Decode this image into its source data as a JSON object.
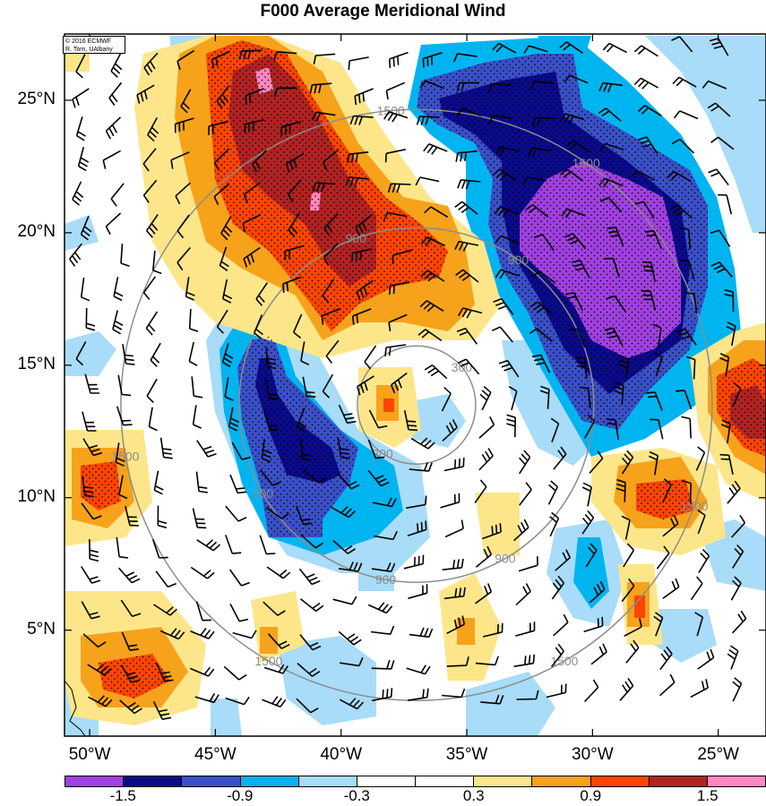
{
  "title": "F000 Average Meridional Wind",
  "credit": {
    "line1": "© 2016 ECMWF",
    "line2": "R. Torn, UAlbany"
  },
  "lat_ticks": [
    {
      "label": "25°N",
      "lat": 25
    },
    {
      "label": "20°N",
      "lat": 20
    },
    {
      "label": "15°N",
      "lat": 15
    },
    {
      "label": "10°N",
      "lat": 10
    },
    {
      "label": "5°N",
      "lat": 5
    }
  ],
  "lon_ticks": [
    {
      "label": "50°W",
      "lon": -50
    },
    {
      "label": "45°W",
      "lon": -45
    },
    {
      "label": "40°W",
      "lon": -40
    },
    {
      "label": "35°W",
      "lon": -35
    },
    {
      "label": "30°W",
      "lon": -30
    },
    {
      "label": "25°W",
      "lon": -25
    }
  ],
  "extent": {
    "lon_min": -51,
    "lon_max": -23.1,
    "lat_min": 1,
    "lat_max": 27.5
  },
  "colorbar": {
    "colors": [
      "#a040e0",
      "#0a0a8c",
      "#3a50c8",
      "#00b4f0",
      "#a8dcf8",
      "#ffffff",
      "#ffffff",
      "#fde68a",
      "#f7a21b",
      "#ff4500",
      "#b22222",
      "#ff88c0"
    ],
    "labels": [
      {
        "text": "-1.5",
        "index": 1
      },
      {
        "text": "-0.9",
        "index": 3
      },
      {
        "text": "-0.3",
        "index": 5
      },
      {
        "text": "0.3",
        "index": 7
      },
      {
        "text": "0.9",
        "index": 9
      },
      {
        "text": "1.5",
        "index": 11
      }
    ]
  },
  "range_rings": [
    {
      "label": "300",
      "radius_km": 300
    },
    {
      "label": "900",
      "radius_km": 900
    },
    {
      "label": "1500",
      "radius_km": 1500
    }
  ],
  "storm_center": {
    "lon": -37,
    "lat": 13.5
  }
}
